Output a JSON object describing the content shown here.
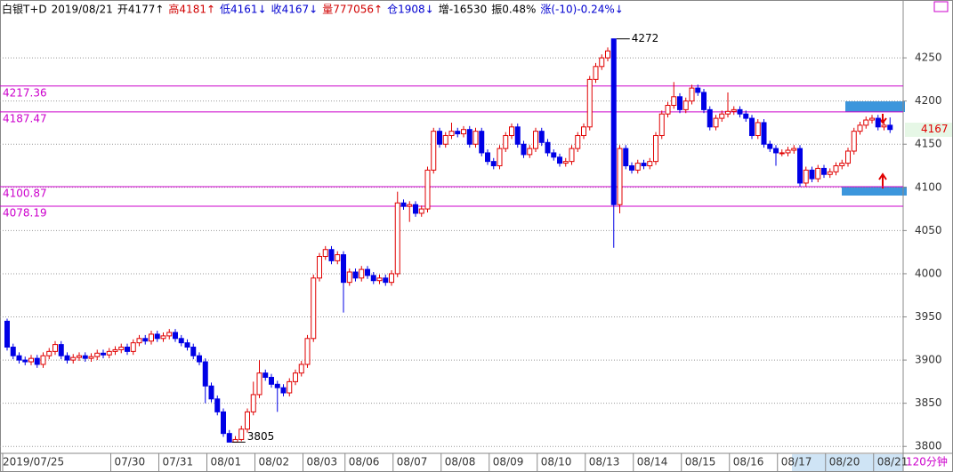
{
  "chart_data": {
    "type": "candlestick",
    "header": [
      {
        "text": "白银T+D",
        "color": "#000000"
      },
      {
        "text": "2019/08/21",
        "color": "#000000"
      },
      {
        "text": "开4177↑",
        "color": "#000000"
      },
      {
        "text": "高4181↑",
        "color": "#d00000"
      },
      {
        "text": "低4161↓",
        "color": "#0000d0"
      },
      {
        "text": "收4167↓",
        "color": "#0000d0"
      },
      {
        "text": "量777056↑",
        "color": "#d00000"
      },
      {
        "text": "仓1908↓",
        "color": "#0000d0"
      },
      {
        "text": "增-16530",
        "color": "#000000"
      },
      {
        "text": "振0.48%",
        "color": "#000000"
      },
      {
        "text": "涨(-10)-0.24%↓",
        "color": "#0000d0"
      }
    ],
    "period": "120分钟",
    "up_color": "#e00000",
    "down_color": "#0000e6",
    "level_color": "#cc00cc",
    "levels": [
      4217.36,
      4187.47,
      4100.87,
      4078.19
    ],
    "ylim": [
      3792,
      4317
    ],
    "yticks": [
      3800,
      3850,
      3900,
      3950,
      4000,
      4050,
      4100,
      4150,
      4200,
      4250
    ],
    "grid": true,
    "categories": [
      "2019/07/25",
      null,
      null,
      null,
      null,
      null,
      null,
      null,
      null,
      null,
      null,
      null,
      null,
      null,
      null,
      null,
      null,
      null,
      "07/30",
      null,
      null,
      null,
      null,
      null,
      null,
      null,
      "07/31",
      null,
      null,
      null,
      null,
      null,
      null,
      null,
      "08/01",
      null,
      null,
      null,
      null,
      null,
      null,
      null,
      "08/02",
      null,
      null,
      null,
      null,
      null,
      null,
      null,
      "08/03",
      null,
      null,
      null,
      null,
      null,
      null,
      "08/06",
      null,
      null,
      null,
      null,
      null,
      null,
      null,
      "08/07",
      null,
      null,
      null,
      null,
      null,
      null,
      null,
      "08/08",
      null,
      null,
      null,
      null,
      null,
      null,
      null,
      "08/09",
      null,
      null,
      null,
      null,
      null,
      null,
      null,
      "08/10",
      null,
      null,
      null,
      null,
      null,
      null,
      null,
      "08/13",
      null,
      null,
      null,
      null,
      null,
      null,
      null,
      "08/14",
      null,
      null,
      null,
      null,
      null,
      null,
      null,
      "08/15",
      null,
      null,
      null,
      null,
      null,
      null,
      null,
      "08/16",
      null,
      null,
      null,
      null,
      null,
      null,
      null,
      "08/17",
      null,
      null,
      null,
      null,
      null,
      null,
      null,
      "08/20",
      null,
      null,
      null,
      null,
      null,
      null,
      null,
      "08/21",
      null,
      null
    ],
    "ohlc": [
      [
        3945,
        3948,
        3911,
        3915
      ],
      [
        3915,
        3919,
        3901,
        3905
      ],
      [
        3905,
        3909,
        3896,
        3900
      ],
      [
        3900,
        3904,
        3894,
        3898
      ],
      [
        3898,
        3906,
        3894,
        3902
      ],
      [
        3902,
        3906,
        3891,
        3895
      ],
      [
        3895,
        3909,
        3891,
        3905
      ],
      [
        3905,
        3914,
        3901,
        3910
      ],
      [
        3910,
        3922,
        3906,
        3918
      ],
      [
        3918,
        3922,
        3901,
        3905
      ],
      [
        3905,
        3909,
        3896,
        3900
      ],
      [
        3900,
        3907,
        3896,
        3903
      ],
      [
        3903,
        3909,
        3899,
        3905
      ],
      [
        3905,
        3909,
        3898,
        3902
      ],
      [
        3902,
        3908,
        3898,
        3904
      ],
      [
        3904,
        3912,
        3900,
        3908
      ],
      [
        3908,
        3912,
        3902,
        3906
      ],
      [
        3906,
        3914,
        3902,
        3910
      ],
      [
        3910,
        3916,
        3906,
        3912
      ],
      [
        3912,
        3919,
        3908,
        3915
      ],
      [
        3915,
        3919,
        3906,
        3910
      ],
      [
        3910,
        3924,
        3906,
        3920
      ],
      [
        3920,
        3929,
        3916,
        3925
      ],
      [
        3925,
        3929,
        3918,
        3922
      ],
      [
        3922,
        3934,
        3918,
        3930
      ],
      [
        3930,
        3934,
        3921,
        3925
      ],
      [
        3925,
        3932,
        3921,
        3928
      ],
      [
        3928,
        3936,
        3924,
        3932
      ],
      [
        3932,
        3936,
        3921,
        3925
      ],
      [
        3925,
        3929,
        3916,
        3920
      ],
      [
        3920,
        3924,
        3911,
        3915
      ],
      [
        3915,
        3919,
        3901,
        3905
      ],
      [
        3905,
        3909,
        3894,
        3898
      ],
      [
        3898,
        3902,
        3850,
        3870
      ],
      [
        3870,
        3874,
        3851,
        3855
      ],
      [
        3855,
        3859,
        3836,
        3840
      ],
      [
        3840,
        3844,
        3811,
        3815
      ],
      [
        3815,
        3819,
        3805,
        3805
      ],
      [
        3805,
        3812,
        3805,
        3808
      ],
      [
        3808,
        3824,
        3806,
        3820
      ],
      [
        3820,
        3844,
        3816,
        3840
      ],
      [
        3840,
        3875,
        3836,
        3860
      ],
      [
        3860,
        3900,
        3856,
        3885
      ],
      [
        3885,
        3889,
        3876,
        3880
      ],
      [
        3880,
        3884,
        3868,
        3872
      ],
      [
        3872,
        3876,
        3840,
        3868
      ],
      [
        3868,
        3872,
        3858,
        3862
      ],
      [
        3862,
        3879,
        3858,
        3875
      ],
      [
        3875,
        3889,
        3871,
        3885
      ],
      [
        3885,
        3899,
        3881,
        3895
      ],
      [
        3895,
        3929,
        3891,
        3925
      ],
      [
        3925,
        3999,
        3921,
        3995
      ],
      [
        3995,
        4024,
        3991,
        4020
      ],
      [
        4020,
        4032,
        4016,
        4028
      ],
      [
        4028,
        4032,
        4011,
        4015
      ],
      [
        4015,
        4026,
        4011,
        4022
      ],
      [
        4022,
        4026,
        3955,
        3990
      ],
      [
        3990,
        4006,
        3986,
        4002
      ],
      [
        4002,
        4006,
        3991,
        3995
      ],
      [
        3995,
        4009,
        3991,
        4005
      ],
      [
        4005,
        4009,
        3994,
        3998
      ],
      [
        3998,
        4002,
        3988,
        3992
      ],
      [
        3992,
        3999,
        3988,
        3995
      ],
      [
        3995,
        3999,
        3986,
        3990
      ],
      [
        3990,
        4004,
        3986,
        4000
      ],
      [
        4000,
        4095,
        3996,
        4082
      ],
      [
        4082,
        4086,
        4074,
        4078
      ],
      [
        4078,
        4084,
        4060,
        4080
      ],
      [
        4080,
        4084,
        4066,
        4070
      ],
      [
        4070,
        4079,
        4066,
        4075
      ],
      [
        4075,
        4124,
        4071,
        4120
      ],
      [
        4120,
        4169,
        4116,
        4165
      ],
      [
        4165,
        4169,
        4146,
        4150
      ],
      [
        4150,
        4164,
        4146,
        4160
      ],
      [
        4160,
        4175,
        4156,
        4165
      ],
      [
        4165,
        4169,
        4158,
        4162
      ],
      [
        4162,
        4171,
        4158,
        4167
      ],
      [
        4167,
        4171,
        4146,
        4150
      ],
      [
        4150,
        4169,
        4146,
        4165
      ],
      [
        4165,
        4169,
        4136,
        4140
      ],
      [
        4140,
        4144,
        4126,
        4130
      ],
      [
        4130,
        4134,
        4121,
        4125
      ],
      [
        4125,
        4149,
        4121,
        4145
      ],
      [
        4145,
        4164,
        4141,
        4160
      ],
      [
        4160,
        4174,
        4156,
        4170
      ],
      [
        4170,
        4174,
        4146,
        4150
      ],
      [
        4150,
        4154,
        4134,
        4138
      ],
      [
        4138,
        4149,
        4134,
        4145
      ],
      [
        4145,
        4169,
        4141,
        4165
      ],
      [
        4165,
        4169,
        4148,
        4152
      ],
      [
        4152,
        4156,
        4136,
        4140
      ],
      [
        4140,
        4144,
        4131,
        4135
      ],
      [
        4135,
        4139,
        4124,
        4128
      ],
      [
        4128,
        4134,
        4124,
        4130
      ],
      [
        4130,
        4149,
        4126,
        4145
      ],
      [
        4145,
        4164,
        4141,
        4160
      ],
      [
        4160,
        4174,
        4156,
        4170
      ],
      [
        4170,
        4229,
        4166,
        4225
      ],
      [
        4225,
        4244,
        4221,
        4240
      ],
      [
        4240,
        4254,
        4236,
        4250
      ],
      [
        4250,
        4262,
        4246,
        4258
      ],
      [
        4272,
        4272,
        4030,
        4080
      ],
      [
        4080,
        4149,
        4070,
        4145
      ],
      [
        4145,
        4149,
        4121,
        4125
      ],
      [
        4125,
        4129,
        4116,
        4120
      ],
      [
        4120,
        4132,
        4116,
        4128
      ],
      [
        4128,
        4132,
        4121,
        4125
      ],
      [
        4125,
        4134,
        4121,
        4130
      ],
      [
        4130,
        4164,
        4126,
        4160
      ],
      [
        4160,
        4189,
        4156,
        4185
      ],
      [
        4185,
        4199,
        4181,
        4195
      ],
      [
        4195,
        4222,
        4191,
        4205
      ],
      [
        4205,
        4209,
        4186,
        4190
      ],
      [
        4190,
        4204,
        4186,
        4200
      ],
      [
        4200,
        4219,
        4196,
        4215
      ],
      [
        4215,
        4219,
        4206,
        4210
      ],
      [
        4210,
        4214,
        4186,
        4190
      ],
      [
        4190,
        4194,
        4166,
        4170
      ],
      [
        4170,
        4184,
        4166,
        4180
      ],
      [
        4180,
        4189,
        4176,
        4185
      ],
      [
        4185,
        4210,
        4181,
        4188
      ],
      [
        4188,
        4194,
        4184,
        4190
      ],
      [
        4190,
        4194,
        4181,
        4185
      ],
      [
        4185,
        4189,
        4176,
        4180
      ],
      [
        4180,
        4184,
        4156,
        4160
      ],
      [
        4160,
        4179,
        4156,
        4175
      ],
      [
        4175,
        4179,
        4146,
        4150
      ],
      [
        4150,
        4154,
        4141,
        4145
      ],
      [
        4145,
        4149,
        4125,
        4140
      ],
      [
        4140,
        4144,
        4136,
        4140
      ],
      [
        4140,
        4147,
        4136,
        4143
      ],
      [
        4143,
        4149,
        4139,
        4145
      ],
      [
        4145,
        4149,
        4101,
        4105
      ],
      [
        4105,
        4124,
        4101,
        4120
      ],
      [
        4120,
        4124,
        4106,
        4110
      ],
      [
        4110,
        4126,
        4106,
        4122
      ],
      [
        4122,
        4126,
        4111,
        4115
      ],
      [
        4115,
        4122,
        4111,
        4118
      ],
      [
        4118,
        4129,
        4114,
        4125
      ],
      [
        4125,
        4132,
        4121,
        4128
      ],
      [
        4128,
        4146,
        4124,
        4142
      ],
      [
        4142,
        4169,
        4138,
        4165
      ],
      [
        4165,
        4176,
        4161,
        4172
      ],
      [
        4172,
        4182,
        4168,
        4178
      ],
      [
        4178,
        4184,
        4174,
        4180
      ],
      [
        4180,
        4184,
        4166,
        4170
      ],
      [
        4170,
        4176,
        4166,
        4172
      ],
      [
        4172,
        4181,
        4163,
        4167
      ]
    ]
  }
}
